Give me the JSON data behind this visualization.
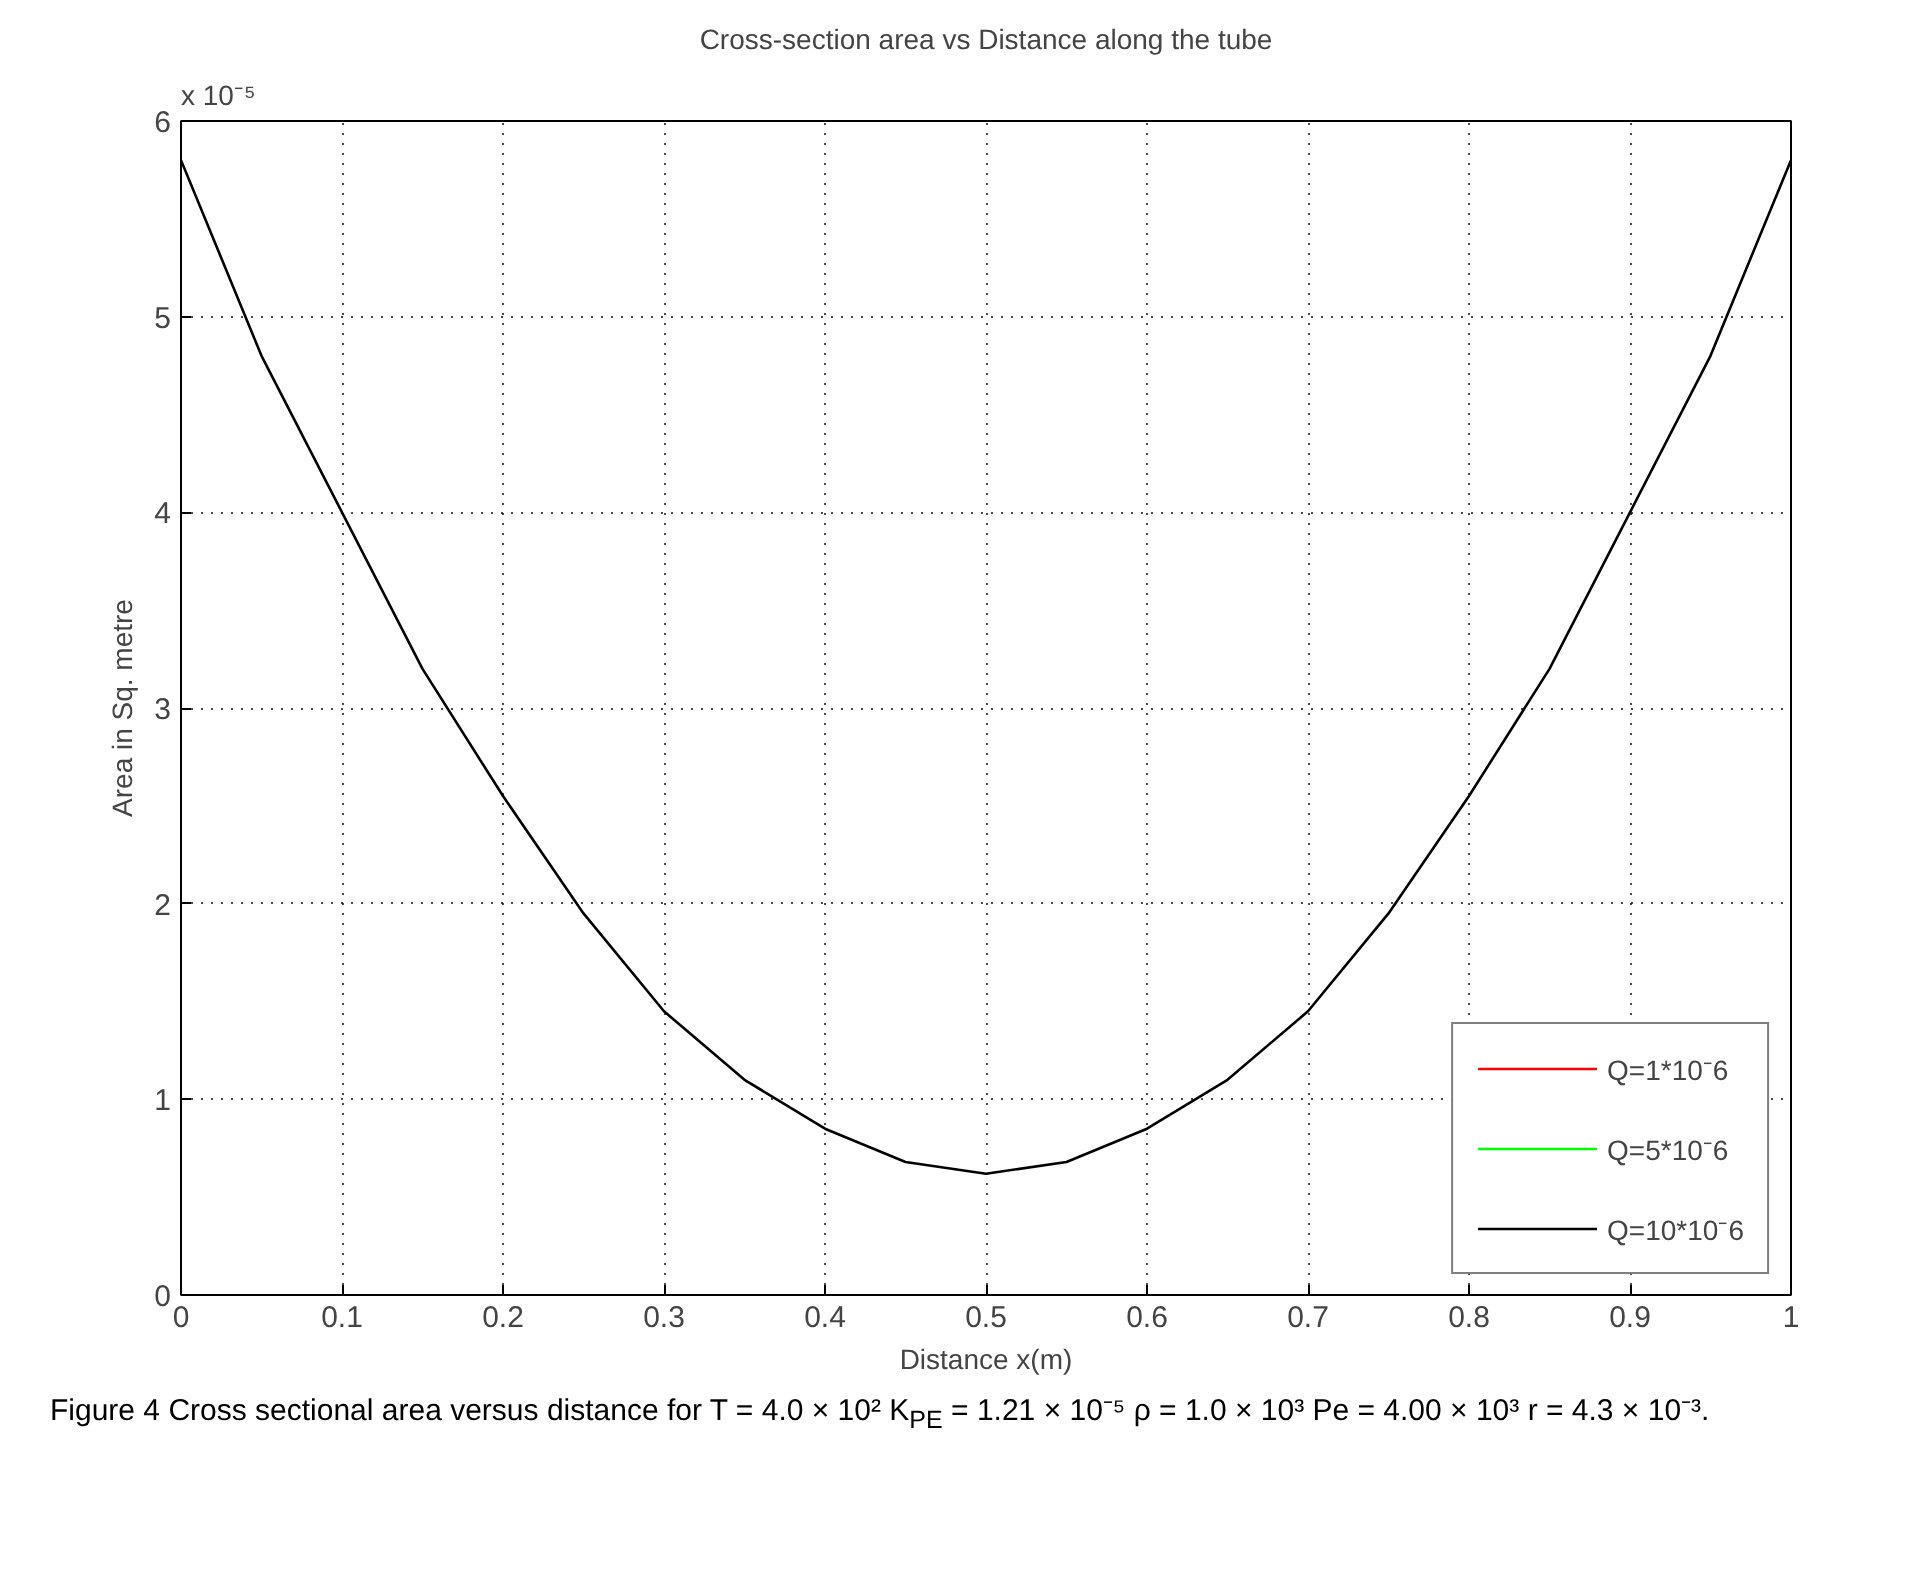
{
  "chart_data": {
    "type": "line",
    "title": "Cross-section area vs Distance along the tube",
    "xlabel": "Distance x(m)",
    "ylabel": "Area in Sq. metre",
    "x": [
      0,
      0.05,
      0.1,
      0.15,
      0.2,
      0.25,
      0.3,
      0.35,
      0.4,
      0.45,
      0.5,
      0.55,
      0.6,
      0.65,
      0.7,
      0.75,
      0.8,
      0.85,
      0.9,
      0.95,
      1
    ],
    "series": [
      {
        "name": "Q=1*10⁻6",
        "color": "#ff0000",
        "values": [
          null,
          null,
          null,
          null,
          null,
          null,
          null,
          null,
          null,
          null,
          null,
          null,
          null,
          null,
          null,
          null,
          null,
          null,
          null,
          null,
          null
        ]
      },
      {
        "name": "Q=5*10⁻6",
        "color": "#00ff00",
        "values": [
          null,
          null,
          null,
          null,
          null,
          null,
          null,
          null,
          null,
          null,
          null,
          null,
          null,
          null,
          null,
          null,
          null,
          null,
          null,
          null,
          null
        ]
      },
      {
        "name": "Q=10*10⁻6",
        "color": "#000000",
        "values": [
          5.8,
          4.8,
          4.0,
          3.2,
          2.55,
          1.95,
          1.45,
          1.1,
          0.85,
          0.68,
          0.62,
          0.68,
          0.85,
          1.1,
          1.45,
          1.95,
          2.55,
          3.2,
          4.0,
          4.8,
          5.8
        ]
      }
    ],
    "xlim": [
      0,
      1
    ],
    "ylim": [
      0,
      6
    ],
    "xticks": [
      0,
      0.1,
      0.2,
      0.3,
      0.4,
      0.5,
      0.6,
      0.7,
      0.8,
      0.9,
      1
    ],
    "yticks": [
      0,
      1,
      2,
      3,
      4,
      5,
      6
    ],
    "grid": true,
    "legend": "bottom right",
    "line_style": "solid",
    "annotations": [
      "x 10⁻⁵",
      "Figure 4 Cross sectional area versus distance for T = 4.0 × 10² K$_{PE}$ = 1.21 × 10⁻⁵ ρ = 1.0 × 10³ Pe = 4.00 × 10³ r = 4.3 × 10⁻³."
    ]
  }
}
